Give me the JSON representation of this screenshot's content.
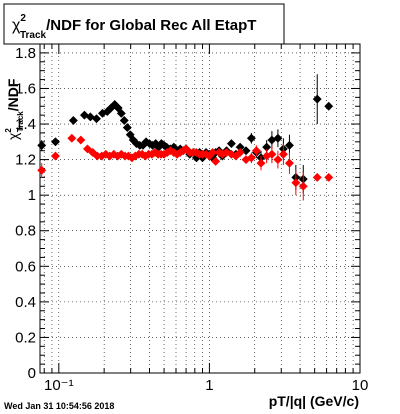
{
  "chart_data": {
    "type": "scatter",
    "title_main": "/NDF for Global Rec All EtapT",
    "title_chi": "χ",
    "title_sup": "2",
    "title_sub": "Track",
    "xlabel": "pT/|q| (GeV/c)",
    "ylabel_chi": "χ",
    "ylabel_sup": "2",
    "ylabel_sub": "Track",
    "ylabel_rest": "/NDF",
    "x_scale": "log",
    "xlim": [
      0.075,
      10
    ],
    "ylim": [
      0,
      1.85
    ],
    "grid": true,
    "x_ticks": [
      {
        "v": 0.1,
        "label": "10⁻¹"
      },
      {
        "v": 1,
        "label": "1"
      },
      {
        "v": 10,
        "label": "10"
      }
    ],
    "y_ticks": [
      {
        "v": 0,
        "label": "0"
      },
      {
        "v": 0.2,
        "label": "0.2"
      },
      {
        "v": 0.4,
        "label": "0.4"
      },
      {
        "v": 0.6,
        "label": "0.6"
      },
      {
        "v": 0.8,
        "label": "0.8"
      },
      {
        "v": 1.0,
        "label": "1"
      },
      {
        "v": 1.2,
        "label": "1.2"
      },
      {
        "v": 1.4,
        "label": "1.4"
      },
      {
        "v": 1.6,
        "label": "1.6"
      },
      {
        "v": 1.8,
        "label": "1.8"
      }
    ],
    "timestamp": "Wed Jan 31 10:54:56 2018",
    "series": [
      {
        "color": "#000000",
        "points": [
          {
            "x": 0.077,
            "y": 1.28,
            "e": 0.03
          },
          {
            "x": 0.095,
            "y": 1.3,
            "e": 0
          },
          {
            "x": 0.125,
            "y": 1.42,
            "e": 0
          },
          {
            "x": 0.148,
            "y": 1.45,
            "e": 0
          },
          {
            "x": 0.162,
            "y": 1.44,
            "e": 0
          },
          {
            "x": 0.178,
            "y": 1.43,
            "e": 0
          },
          {
            "x": 0.195,
            "y": 1.46,
            "e": 0
          },
          {
            "x": 0.21,
            "y": 1.47,
            "e": 0
          },
          {
            "x": 0.222,
            "y": 1.49,
            "e": 0
          },
          {
            "x": 0.235,
            "y": 1.51,
            "e": 0
          },
          {
            "x": 0.248,
            "y": 1.49,
            "e": 0
          },
          {
            "x": 0.26,
            "y": 1.46,
            "e": 0
          },
          {
            "x": 0.272,
            "y": 1.42,
            "e": 0
          },
          {
            "x": 0.285,
            "y": 1.38,
            "e": 0
          },
          {
            "x": 0.298,
            "y": 1.34,
            "e": 0
          },
          {
            "x": 0.312,
            "y": 1.31,
            "e": 0
          },
          {
            "x": 0.328,
            "y": 1.29,
            "e": 0
          },
          {
            "x": 0.345,
            "y": 1.28,
            "e": 0
          },
          {
            "x": 0.362,
            "y": 1.28,
            "e": 0
          },
          {
            "x": 0.38,
            "y": 1.3,
            "e": 0
          },
          {
            "x": 0.4,
            "y": 1.29,
            "e": 0
          },
          {
            "x": 0.42,
            "y": 1.28,
            "e": 0
          },
          {
            "x": 0.44,
            "y": 1.29,
            "e": 0
          },
          {
            "x": 0.46,
            "y": 1.27,
            "e": 0
          },
          {
            "x": 0.48,
            "y": 1.29,
            "e": 0
          },
          {
            "x": 0.5,
            "y": 1.28,
            "e": 0
          },
          {
            "x": 0.52,
            "y": 1.27,
            "e": 0
          },
          {
            "x": 0.55,
            "y": 1.26,
            "e": 0
          },
          {
            "x": 0.58,
            "y": 1.27,
            "e": 0
          },
          {
            "x": 0.61,
            "y": 1.24,
            "e": 0
          },
          {
            "x": 0.64,
            "y": 1.26,
            "e": 0
          },
          {
            "x": 0.67,
            "y": 1.25,
            "e": 0
          },
          {
            "x": 0.7,
            "y": 1.26,
            "e": 0
          },
          {
            "x": 0.74,
            "y": 1.23,
            "e": 0
          },
          {
            "x": 0.78,
            "y": 1.24,
            "e": 0
          },
          {
            "x": 0.82,
            "y": 1.21,
            "e": 0
          },
          {
            "x": 0.86,
            "y": 1.24,
            "e": 0
          },
          {
            "x": 0.9,
            "y": 1.21,
            "e": 0
          },
          {
            "x": 0.95,
            "y": 1.24,
            "e": 0
          },
          {
            "x": 1.0,
            "y": 1.23,
            "e": 0
          },
          {
            "x": 1.05,
            "y": 1.21,
            "e": 0
          },
          {
            "x": 1.1,
            "y": 1.24,
            "e": 0
          },
          {
            "x": 1.16,
            "y": 1.25,
            "e": 0
          },
          {
            "x": 1.22,
            "y": 1.22,
            "e": 0
          },
          {
            "x": 1.3,
            "y": 1.25,
            "e": 0
          },
          {
            "x": 1.4,
            "y": 1.29,
            "e": 0
          },
          {
            "x": 1.5,
            "y": 1.23,
            "e": 0
          },
          {
            "x": 1.6,
            "y": 1.27,
            "e": 0.02
          },
          {
            "x": 1.75,
            "y": 1.25,
            "e": 0.02
          },
          {
            "x": 1.9,
            "y": 1.32,
            "e": 0.03
          },
          {
            "x": 2.05,
            "y": 1.24,
            "e": 0.03
          },
          {
            "x": 2.2,
            "y": 1.21,
            "e": 0.04
          },
          {
            "x": 2.4,
            "y": 1.27,
            "e": 0.04
          },
          {
            "x": 2.6,
            "y": 1.31,
            "e": 0.05
          },
          {
            "x": 2.85,
            "y": 1.32,
            "e": 0.05
          },
          {
            "x": 3.1,
            "y": 1.26,
            "e": 0.06
          },
          {
            "x": 3.4,
            "y": 1.28,
            "e": 0.06
          },
          {
            "x": 3.75,
            "y": 1.1,
            "e": 0.07
          },
          {
            "x": 4.2,
            "y": 1.09,
            "e": 0.08
          },
          {
            "x": 5.2,
            "y": 1.54,
            "e": 0.14
          },
          {
            "x": 6.2,
            "y": 1.5,
            "e": 0
          }
        ]
      },
      {
        "color": "#ff0000",
        "points": [
          {
            "x": 0.077,
            "y": 1.14,
            "e": 0.04
          },
          {
            "x": 0.095,
            "y": 1.22,
            "e": 0
          },
          {
            "x": 0.122,
            "y": 1.32,
            "e": 0
          },
          {
            "x": 0.14,
            "y": 1.31,
            "e": 0
          },
          {
            "x": 0.155,
            "y": 1.26,
            "e": 0
          },
          {
            "x": 0.168,
            "y": 1.24,
            "e": 0
          },
          {
            "x": 0.18,
            "y": 1.22,
            "e": 0
          },
          {
            "x": 0.193,
            "y": 1.22,
            "e": 0
          },
          {
            "x": 0.205,
            "y": 1.23,
            "e": 0
          },
          {
            "x": 0.218,
            "y": 1.22,
            "e": 0
          },
          {
            "x": 0.232,
            "y": 1.23,
            "e": 0
          },
          {
            "x": 0.246,
            "y": 1.22,
            "e": 0
          },
          {
            "x": 0.26,
            "y": 1.23,
            "e": 0
          },
          {
            "x": 0.275,
            "y": 1.22,
            "e": 0
          },
          {
            "x": 0.29,
            "y": 1.22,
            "e": 0
          },
          {
            "x": 0.306,
            "y": 1.21,
            "e": 0
          },
          {
            "x": 0.322,
            "y": 1.22,
            "e": 0
          },
          {
            "x": 0.34,
            "y": 1.23,
            "e": 0
          },
          {
            "x": 0.358,
            "y": 1.23,
            "e": 0
          },
          {
            "x": 0.376,
            "y": 1.22,
            "e": 0
          },
          {
            "x": 0.395,
            "y": 1.23,
            "e": 0
          },
          {
            "x": 0.415,
            "y": 1.23,
            "e": 0
          },
          {
            "x": 0.435,
            "y": 1.24,
            "e": 0
          },
          {
            "x": 0.456,
            "y": 1.23,
            "e": 0
          },
          {
            "x": 0.478,
            "y": 1.23,
            "e": 0
          },
          {
            "x": 0.5,
            "y": 1.23,
            "e": 0
          },
          {
            "x": 0.525,
            "y": 1.24,
            "e": 0
          },
          {
            "x": 0.55,
            "y": 1.25,
            "e": 0
          },
          {
            "x": 0.58,
            "y": 1.24,
            "e": 0
          },
          {
            "x": 0.61,
            "y": 1.23,
            "e": 0
          },
          {
            "x": 0.64,
            "y": 1.24,
            "e": 0
          },
          {
            "x": 0.67,
            "y": 1.25,
            "e": 0
          },
          {
            "x": 0.7,
            "y": 1.26,
            "e": 0
          },
          {
            "x": 0.74,
            "y": 1.24,
            "e": 0
          },
          {
            "x": 0.78,
            "y": 1.24,
            "e": 0
          },
          {
            "x": 0.82,
            "y": 1.24,
            "e": 0
          },
          {
            "x": 0.86,
            "y": 1.23,
            "e": 0
          },
          {
            "x": 0.9,
            "y": 1.23,
            "e": 0
          },
          {
            "x": 0.95,
            "y": 1.23,
            "e": 0
          },
          {
            "x": 1.0,
            "y": 1.22,
            "e": 0
          },
          {
            "x": 1.05,
            "y": 1.24,
            "e": 0
          },
          {
            "x": 1.1,
            "y": 1.19,
            "e": 0
          },
          {
            "x": 1.16,
            "y": 1.24,
            "e": 0
          },
          {
            "x": 1.22,
            "y": 1.23,
            "e": 0
          },
          {
            "x": 1.3,
            "y": 1.24,
            "e": 0
          },
          {
            "x": 1.4,
            "y": 1.23,
            "e": 0
          },
          {
            "x": 1.5,
            "y": 1.22,
            "e": 0
          },
          {
            "x": 1.6,
            "y": 1.24,
            "e": 0.02
          },
          {
            "x": 1.75,
            "y": 1.2,
            "e": 0.02
          },
          {
            "x": 1.9,
            "y": 1.21,
            "e": 0.03
          },
          {
            "x": 2.05,
            "y": 1.25,
            "e": 0.03
          },
          {
            "x": 2.2,
            "y": 1.18,
            "e": 0.04
          },
          {
            "x": 2.4,
            "y": 1.22,
            "e": 0.04
          },
          {
            "x": 2.6,
            "y": 1.23,
            "e": 0.05
          },
          {
            "x": 2.85,
            "y": 1.2,
            "e": 0.05
          },
          {
            "x": 3.1,
            "y": 1.23,
            "e": 0.06
          },
          {
            "x": 3.4,
            "y": 1.18,
            "e": 0.06
          },
          {
            "x": 3.75,
            "y": 1.07,
            "e": 0.07
          },
          {
            "x": 4.2,
            "y": 1.05,
            "e": 0.08
          },
          {
            "x": 5.2,
            "y": 1.1,
            "e": 0
          },
          {
            "x": 6.2,
            "y": 1.1,
            "e": 0
          }
        ]
      }
    ]
  }
}
